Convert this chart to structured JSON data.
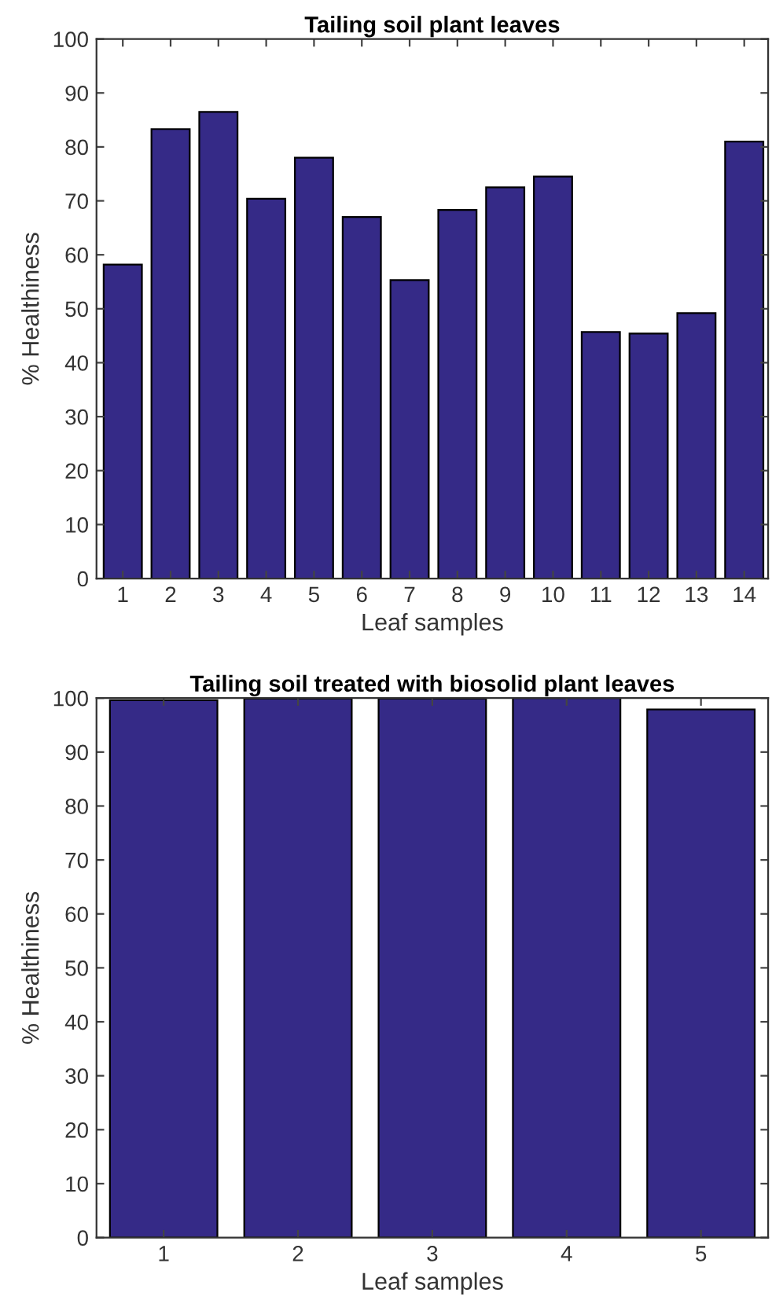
{
  "chart_data": [
    {
      "type": "bar",
      "title": "Tailing soil plant leaves",
      "xlabel": "Leaf samples",
      "ylabel": "% Healthiness",
      "categories": [
        "1",
        "2",
        "3",
        "4",
        "5",
        "6",
        "7",
        "8",
        "9",
        "10",
        "11",
        "12",
        "13",
        "14"
      ],
      "values": [
        58.2,
        83.3,
        86.5,
        70.4,
        78,
        67,
        55.3,
        68.3,
        72.5,
        74.5,
        45.7,
        45.4,
        49.2,
        81
      ],
      "color": "#352a87",
      "ylim": [
        0,
        100
      ],
      "yticks": [
        0,
        10,
        20,
        30,
        40,
        50,
        60,
        70,
        80,
        90,
        100
      ],
      "grid": false
    },
    {
      "type": "bar",
      "title": "Tailing soil treated with biosolid plant leaves",
      "xlabel": "Leaf samples",
      "ylabel": "% Healthiness",
      "categories": [
        "1",
        "2",
        "3",
        "4",
        "5"
      ],
      "values": [
        99.6,
        99.9,
        99.9,
        100,
        97.9
      ],
      "color": "#352a87",
      "ylim": [
        0,
        100
      ],
      "yticks": [
        0,
        10,
        20,
        30,
        40,
        50,
        60,
        70,
        80,
        90,
        100
      ],
      "grid": false
    }
  ]
}
